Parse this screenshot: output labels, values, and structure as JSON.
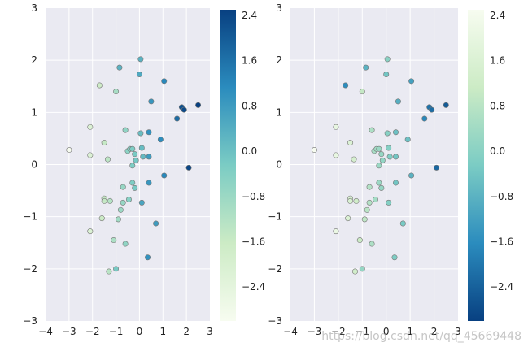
{
  "chart_data": [
    {
      "type": "scatter",
      "title": "",
      "xlabel": "",
      "ylabel": "",
      "xlim": [
        -4,
        3
      ],
      "ylim": [
        -3,
        3
      ],
      "x_ticks": [
        "−4",
        "−3",
        "−2",
        "−1",
        "0",
        "1",
        "2",
        "3"
      ],
      "y_ticks": [
        "−3",
        "−2",
        "−1",
        "0",
        "1",
        "2",
        "3"
      ],
      "grid": true,
      "colormap": "GnBu",
      "colorbar": {
        "range": [
          -3.0,
          2.5
        ],
        "ticks": [
          "2.4",
          "1.6",
          "0.8",
          "0.0",
          "−0.8",
          "−1.6",
          "−2.4"
        ],
        "tick_values": [
          2.4,
          1.6,
          0.8,
          0.0,
          -0.8,
          -1.6,
          -2.4
        ]
      },
      "points": [
        [
          -3.0,
          0.28
        ],
        [
          -2.1,
          0.72
        ],
        [
          -2.1,
          0.18
        ],
        [
          -1.7,
          1.52
        ],
        [
          -1.5,
          0.42
        ],
        [
          -1.35,
          0.1
        ],
        [
          -1.0,
          1.4
        ],
        [
          -0.85,
          1.86
        ],
        [
          -0.6,
          0.66
        ],
        [
          -0.5,
          0.26
        ],
        [
          -0.4,
          0.3
        ],
        [
          -0.3,
          0.3
        ],
        [
          -0.2,
          0.2
        ],
        [
          -0.3,
          -0.02
        ],
        [
          -0.15,
          0.08
        ],
        [
          0.05,
          0.6
        ],
        [
          0.05,
          2.02
        ],
        [
          0.0,
          1.73
        ],
        [
          0.1,
          0.32
        ],
        [
          0.15,
          0.15
        ],
        [
          0.4,
          0.62
        ],
        [
          0.5,
          1.21
        ],
        [
          0.4,
          0.15
        ],
        [
          0.9,
          0.48
        ],
        [
          1.05,
          1.6
        ],
        [
          1.6,
          0.88
        ],
        [
          1.8,
          1.1
        ],
        [
          1.9,
          1.05
        ],
        [
          2.5,
          1.14
        ],
        [
          2.1,
          -0.06
        ],
        [
          1.05,
          -0.21
        ],
        [
          0.4,
          -0.35
        ],
        [
          0.1,
          -0.73
        ],
        [
          0.7,
          -1.13
        ],
        [
          0.35,
          -1.78
        ],
        [
          -0.3,
          -0.35
        ],
        [
          -0.45,
          -0.67
        ],
        [
          -0.2,
          -0.45
        ],
        [
          -0.7,
          -0.43
        ],
        [
          -0.7,
          -0.73
        ],
        [
          -0.9,
          -1.05
        ],
        [
          -1.25,
          -0.7
        ],
        [
          -1.5,
          -0.65
        ],
        [
          -1.5,
          -0.7
        ],
        [
          -1.6,
          -1.03
        ],
        [
          -2.1,
          -1.28
        ],
        [
          -1.1,
          -1.45
        ],
        [
          -0.6,
          -1.52
        ],
        [
          -1.0,
          -2.0
        ],
        [
          -1.3,
          -2.05
        ],
        [
          -0.8,
          -0.87
        ]
      ],
      "point_values_left": [
        -3.0,
        -2.1,
        -2.1,
        -1.7,
        -1.5,
        -1.35,
        -1.0,
        0.3,
        -0.6,
        -0.5,
        -0.4,
        -0.3,
        -0.2,
        -0.3,
        -0.15,
        0.05,
        0.3,
        0.5,
        0.1,
        0.15,
        1.0,
        0.9,
        0.8,
        1.1,
        1.2,
        1.7,
        2.2,
        2.3,
        2.5,
        2.4,
        1.2,
        0.9,
        0.6,
        0.8,
        1.0,
        -0.3,
        -0.45,
        -0.2,
        -0.7,
        -0.7,
        -0.9,
        -1.25,
        -1.5,
        -1.5,
        -1.6,
        -2.1,
        -1.1,
        -0.6,
        -0.2,
        -1.3,
        -0.8
      ],
      "point_values_right": [
        2.5,
        2.0,
        2.0,
        -1.6,
        1.6,
        1.4,
        1.0,
        -0.8,
        0.6,
        0.5,
        0.4,
        0.3,
        0.2,
        0.3,
        0.15,
        -0.05,
        0.0,
        -0.4,
        -0.1,
        -0.15,
        -0.5,
        -0.9,
        -0.4,
        -0.5,
        -1.2,
        -1.7,
        -2.1,
        -2.2,
        -2.5,
        -2.3,
        -0.8,
        -0.4,
        -0.1,
        -0.3,
        -0.2,
        0.3,
        0.45,
        0.2,
        0.7,
        0.7,
        0.9,
        1.25,
        1.5,
        1.5,
        1.6,
        2.1,
        1.1,
        0.6,
        0.2,
        1.3,
        0.8
      ]
    },
    {
      "type": "scatter",
      "title": "",
      "xlabel": "",
      "ylabel": "",
      "xlim": [
        -4,
        3
      ],
      "ylim": [
        -3,
        3
      ],
      "x_ticks": [
        "−4",
        "−3",
        "−2",
        "−1",
        "0",
        "1",
        "2",
        "3"
      ],
      "y_ticks": [
        "−3",
        "−2",
        "−1",
        "0",
        "1",
        "2",
        "3"
      ],
      "grid": true,
      "colormap": "GnBu_r",
      "colorbar": {
        "range": [
          -3.0,
          2.5
        ],
        "ticks": [
          "2.4",
          "1.6",
          "0.8",
          "0.0",
          "−0.8",
          "−1.6",
          "−2.4"
        ],
        "tick_values": [
          2.4,
          1.6,
          0.8,
          0.0,
          -0.8,
          -1.6,
          -2.4
        ]
      }
    }
  ],
  "watermark": "https://blog.csdn.net/qq_45669448"
}
